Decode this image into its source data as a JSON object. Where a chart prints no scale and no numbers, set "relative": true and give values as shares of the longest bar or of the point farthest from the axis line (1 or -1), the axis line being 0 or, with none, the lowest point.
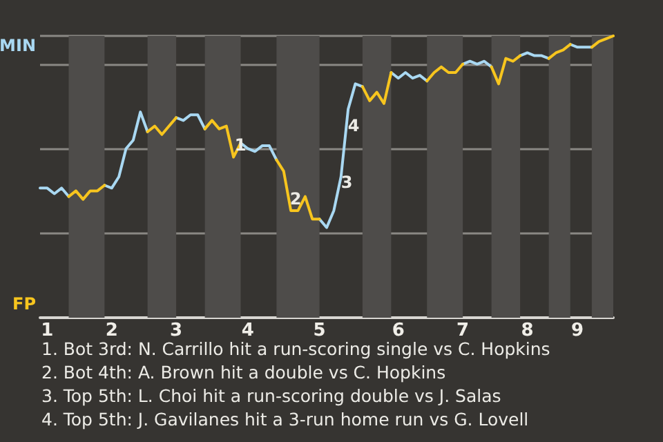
{
  "chart_data": {
    "type": "line",
    "relative": true,
    "categories": [
      null,
      "1",
      null,
      null,
      null,
      null,
      null,
      null,
      null,
      null,
      "2",
      null,
      null,
      null,
      null,
      null,
      null,
      null,
      null,
      "3",
      null,
      null,
      null,
      null,
      null,
      null,
      null,
      null,
      null,
      "4",
      null,
      null,
      null,
      null,
      null,
      null,
      null,
      null,
      null,
      "5",
      null,
      null,
      null,
      null,
      null,
      null,
      null,
      null,
      null,
      null,
      "6",
      null,
      null,
      null,
      null,
      null,
      null,
      null,
      null,
      "7",
      null,
      null,
      null,
      null,
      null,
      null,
      null,
      null,
      "8",
      null,
      null,
      null,
      null,
      null,
      null,
      "9",
      null,
      null,
      null,
      null,
      null
    ],
    "grid": "y",
    "marker": "none",
    "line_style": "solid",
    "series": [
      {
        "color": "#a9d8f2",
        "values": [
          0.46,
          0.46,
          0.44,
          0.46,
          0.43,
          null,
          null,
          null,
          null,
          0.47,
          0.46,
          0.5,
          0.6,
          0.63,
          0.73,
          0.66,
          null,
          null,
          null,
          0.71,
          0.7,
          0.72,
          0.72,
          0.67,
          null,
          null,
          null,
          null,
          0.62,
          0.6,
          0.59,
          0.61,
          0.61,
          0.56,
          null,
          null,
          null,
          null,
          null,
          0.35,
          0.32,
          0.38,
          0.5,
          0.74,
          0.83,
          0.82,
          null,
          null,
          null,
          0.87,
          0.85,
          0.87,
          0.85,
          0.86,
          0.84,
          null,
          null,
          null,
          null,
          0.9,
          0.91,
          0.9,
          0.91,
          0.89,
          null,
          null,
          null,
          0.93,
          0.94,
          0.93,
          0.93,
          0.92,
          null,
          null,
          0.97,
          0.96,
          0.96,
          0.96,
          null,
          null,
          null
        ]
      },
      {
        "color": "#f7c51e",
        "values": [
          null,
          null,
          null,
          null,
          0.43,
          0.45,
          0.42,
          0.45,
          0.45,
          0.47,
          null,
          null,
          null,
          null,
          null,
          0.66,
          0.68,
          0.65,
          0.68,
          0.71,
          null,
          null,
          null,
          0.67,
          0.7,
          0.67,
          0.68,
          0.57,
          0.62,
          null,
          null,
          null,
          null,
          0.56,
          0.52,
          0.38,
          0.38,
          0.43,
          0.35,
          0.35,
          null,
          null,
          null,
          null,
          null,
          0.82,
          0.77,
          0.8,
          0.76,
          0.87,
          null,
          null,
          null,
          null,
          0.84,
          0.87,
          0.89,
          0.87,
          0.87,
          0.9,
          null,
          null,
          null,
          0.89,
          0.83,
          0.92,
          0.91,
          0.93,
          null,
          null,
          null,
          0.92,
          0.94,
          0.95,
          0.97,
          null,
          null,
          0.96,
          0.98,
          0.99,
          1
        ]
      }
    ],
    "annotations": [
      "MIN",
      "FP",
      "1",
      "2",
      "3",
      "4",
      "1. Bot 3rd: N. Carrillo hit a run-scoring single vs C. Hopkins",
      "2. Bot 4th: A. Brown hit a double vs C. Hopkins",
      "3. Top 5th: L. Choi hit a run-scoring double vs J. Salas",
      "4. Top 5th: J. Gavilanes hit a 3-run home run vs G. Lovell"
    ]
  }
}
